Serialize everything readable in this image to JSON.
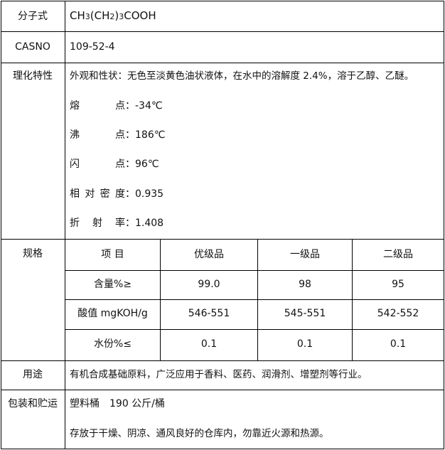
{
  "rows": {
    "formula": {
      "label": "分子式",
      "value_parts": [
        "CH",
        "3",
        "(CH",
        "2",
        ")",
        "3",
        "COOH"
      ]
    },
    "casno": {
      "label": "CASNO",
      "value": "109-52-4"
    },
    "properties": {
      "label": "理化特性",
      "appearance": "外观和性状：无色至淡黄色油状液体，在水中的溶解度 2.4%，溶于乙醇、乙醚。",
      "items": [
        {
          "name": "熔点",
          "value": "-34℃"
        },
        {
          "name": "沸点",
          "value": "186℃"
        },
        {
          "name": "闪点",
          "value": "96℃"
        },
        {
          "name": "相对密度",
          "value": "0.935"
        },
        {
          "name": "折射率",
          "value": "1.408"
        }
      ]
    },
    "spec": {
      "label": "规格",
      "headers": [
        "项 目",
        "优级品",
        "一级品",
        "二级品"
      ],
      "rows": [
        [
          "含量%≥",
          "99.0",
          "98",
          "95"
        ],
        [
          "酸值 mgKOH/g",
          "546-551",
          "545-551",
          "542-552"
        ],
        [
          "水份%≤",
          "0.1",
          "0.1",
          "0.1"
        ]
      ]
    },
    "usage": {
      "label": "用途",
      "value": "有机合成基础原料，广泛应用于香料、医药、润滑剂、增塑剂等行业。"
    },
    "packaging": {
      "label": "包装和贮运",
      "lines": [
        "塑料桶　190 公斤/桶",
        "存放于干燥、阴凉、通风良好的仓库内，勿靠近火源和热源。"
      ]
    }
  }
}
